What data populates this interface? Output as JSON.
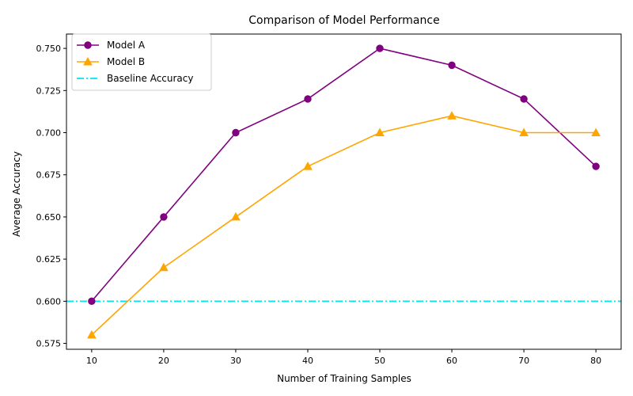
{
  "chart_data": {
    "type": "line",
    "title": "Comparison of Model Performance",
    "xlabel": "Number of Training Samples",
    "ylabel": "Average Accuracy",
    "x": [
      10,
      20,
      30,
      40,
      50,
      60,
      70,
      80
    ],
    "xlim": [
      6.5,
      83.5
    ],
    "ylim": [
      0.5715,
      0.7585
    ],
    "xticks": [
      10,
      20,
      30,
      40,
      50,
      60,
      70,
      80
    ],
    "xtick_labels": [
      "10",
      "20",
      "30",
      "40",
      "50",
      "60",
      "70",
      "80"
    ],
    "yticks": [
      0.575,
      0.6,
      0.625,
      0.65,
      0.675,
      0.7,
      0.725,
      0.75
    ],
    "ytick_labels": [
      "0.575",
      "0.600",
      "0.625",
      "0.650",
      "0.675",
      "0.700",
      "0.725",
      "0.750"
    ],
    "grid": false,
    "legend_position": "top-left",
    "series": [
      {
        "name": "Model A",
        "values": [
          0.6,
          0.65,
          0.7,
          0.72,
          0.75,
          0.74,
          0.72,
          0.68
        ],
        "color": "#800080",
        "marker": "circle"
      },
      {
        "name": "Model B",
        "values": [
          0.58,
          0.62,
          0.65,
          0.68,
          0.7,
          0.71,
          0.7,
          0.7
        ],
        "color": "#FFA500",
        "marker": "triangle"
      }
    ],
    "reference_lines": [
      {
        "name": "Baseline Accuracy",
        "y": 0.6,
        "color": "#00E5EE",
        "style": "dashdot"
      }
    ]
  }
}
